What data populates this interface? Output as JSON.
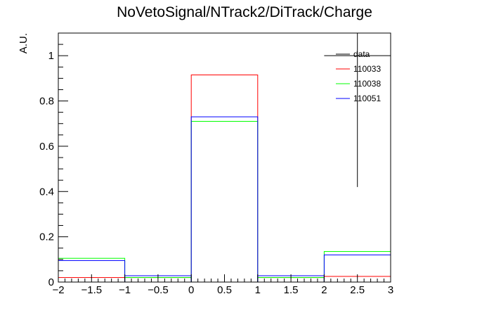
{
  "chart_data": {
    "type": "histogram",
    "title": "NoVetoSignal/NTrack2/DiTrack/Charge",
    "xlabel": "",
    "ylabel": "A.U.",
    "xlim": [
      -2,
      3
    ],
    "ylim": [
      0,
      1.1
    ],
    "x_ticks": [
      "−2",
      "−1.5",
      "−1",
      "−0.5",
      "0",
      "0.5",
      "1",
      "1.5",
      "2",
      "2.5",
      "3"
    ],
    "y_ticks": [
      "0",
      "0.2",
      "0.4",
      "0.6",
      "0.8",
      "1"
    ],
    "bin_edges": [
      -2,
      -1,
      0,
      1,
      2,
      3
    ],
    "series": [
      {
        "name": "110033",
        "color": "#ff0000",
        "values": [
          0.02,
          0.02,
          0.915,
          0.02,
          0.025
        ]
      },
      {
        "name": "110038",
        "color": "#00ff00",
        "values": [
          0.105,
          0.02,
          0.71,
          0.02,
          0.135
        ]
      },
      {
        "name": "110051",
        "color": "#0000ff",
        "values": [
          0.095,
          0.028,
          0.73,
          0.028,
          0.12
        ]
      }
    ],
    "data_points": [
      {
        "name": "data",
        "color": "#000000",
        "x": 2.5,
        "y": 1.0,
        "y_low": 0.42,
        "y_high": 1.1,
        "x_low": 2.0,
        "x_high": 3.0
      }
    ],
    "legend": {
      "position": "top-right",
      "entries": [
        {
          "label": "data",
          "color": "#000000"
        },
        {
          "label": "110033",
          "color": "#ff0000"
        },
        {
          "label": "110038",
          "color": "#00ff00"
        },
        {
          "label": "110051",
          "color": "#0000ff"
        }
      ]
    },
    "grid": false
  }
}
